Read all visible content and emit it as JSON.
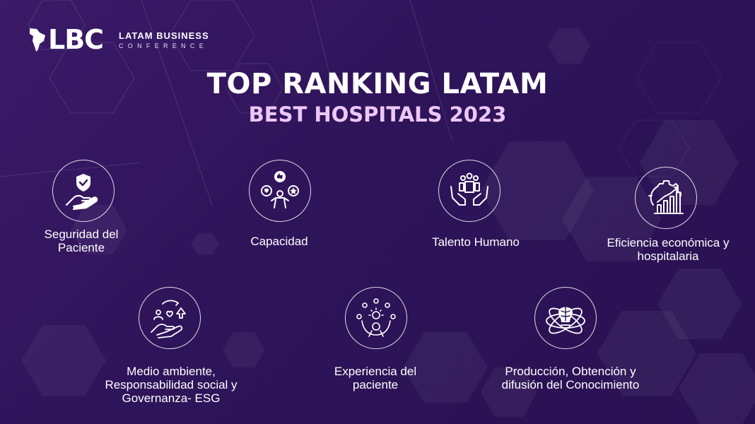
{
  "brand": {
    "mark": "LBC",
    "name_top": "LATAM BUSINESS",
    "name_bottom": "CONFERENCE"
  },
  "heading": {
    "title": "TOP RANKING LATAM",
    "subtitle": "BEST HOSPITALS 2023"
  },
  "criteria": [
    {
      "label": "Seguridad del Paciente",
      "icon": "hand-shield-icon"
    },
    {
      "label": "Capacidad",
      "icon": "person-thumbs-heart-star-icon"
    },
    {
      "label": "Talento Humano",
      "icon": "hands-team-icon"
    },
    {
      "label": "Eficiencia económica y hospitalaria",
      "icon": "gear-bar-chart-icon"
    },
    {
      "label": "Medio ambiente, Responsabilidad social y Governanza- ESG",
      "icon": "hand-people-tree-cycle-icon"
    },
    {
      "label": "Experiencia del paciente",
      "icon": "person-gears-idea-icon"
    },
    {
      "label": "Producción, Obtención y difusión del Conocimiento",
      "icon": "brain-atom-icon"
    }
  ],
  "colors": {
    "background": "#2e1459",
    "subtitle": "#edc7f6",
    "text": "#ffffff"
  }
}
